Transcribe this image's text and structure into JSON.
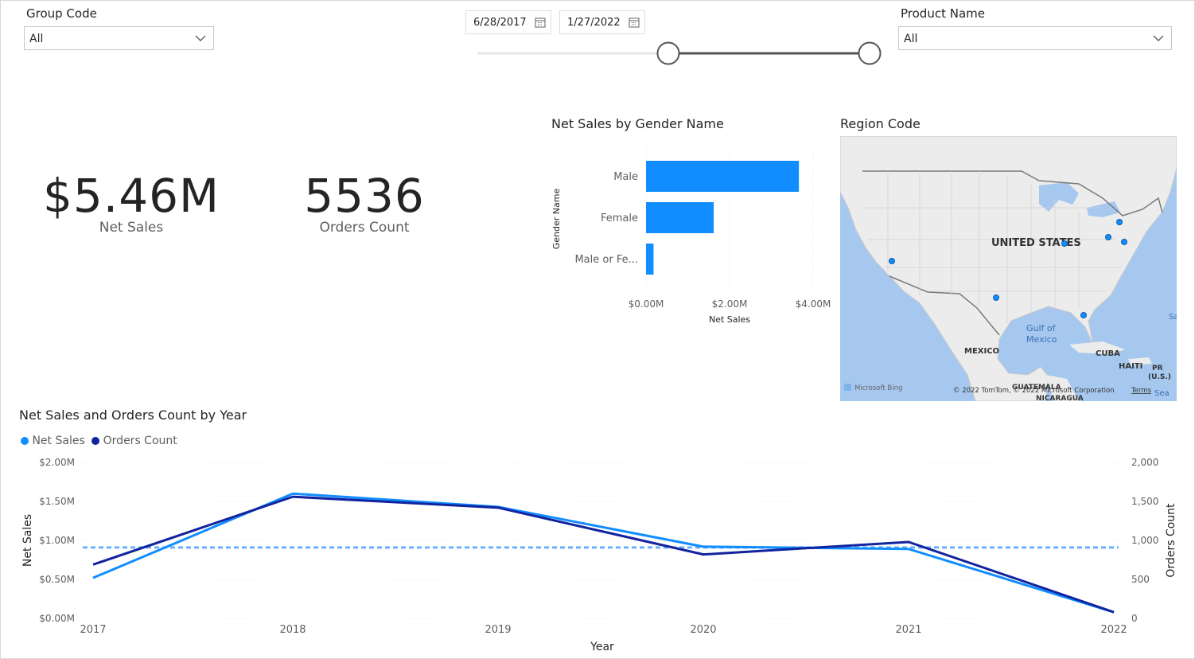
{
  "slicers": {
    "group_code": {
      "title": "Group Code",
      "value": "All"
    },
    "product_name": {
      "title": "Product Name",
      "value": "All"
    },
    "date_range": {
      "start": "6/28/2017",
      "end": "1/27/2022"
    }
  },
  "kpis": {
    "net_sales": {
      "value": "$5.46M",
      "label": "Net Sales"
    },
    "orders_count": {
      "value": "5536",
      "label": "Orders Count"
    }
  },
  "gender_chart": {
    "title": "Net Sales by Gender Name",
    "chart_data": {
      "type": "bar",
      "orientation": "horizontal",
      "categories": [
        "Male",
        "Female",
        "Male or Fe..."
      ],
      "values": [
        3.66,
        1.62,
        0.18
      ],
      "xlabel": "Net Sales",
      "ylabel": "Gender Name",
      "xticks": [
        "$0.00M",
        "$2.00M",
        "$4.00M"
      ],
      "xlim": [
        0,
        4
      ],
      "color": "#118dff"
    }
  },
  "map": {
    "title": "Region Code",
    "labels": {
      "country": "UNITED STATES",
      "gulf_line1": "Gulf of",
      "gulf_line2": "Mexico",
      "mexico": "MEXICO",
      "cuba": "CUBA",
      "haiti": "HAITI",
      "pr1": "PR",
      "pr2": "(U.S.)",
      "guatemala": "GUATEMALA",
      "nicaragua": "NICARAGUA",
      "sea": "Sea",
      "edge_sa": "Sa",
      "bing": "Microsoft Bing",
      "copyright": "© 2022 TomTom, © 2022 Microsoft Corporation",
      "terms": "Terms"
    },
    "colors": {
      "land": "#ececec",
      "water": "#a6c8ef",
      "dot": "#118dff"
    }
  },
  "year_chart": {
    "title": "Net Sales and Orders Count by Year",
    "legend": [
      "Net Sales",
      "Orders Count"
    ],
    "chart_data": {
      "type": "line",
      "x": [
        "2017",
        "2018",
        "2019",
        "2020",
        "2021",
        "2022"
      ],
      "series": [
        {
          "name": "Net Sales",
          "axis": "left",
          "color": "#118dff",
          "values": [
            0.52,
            1.6,
            1.43,
            0.92,
            0.89,
            0.08
          ]
        },
        {
          "name": "Orders Count",
          "axis": "right",
          "color": "#12239e",
          "values": [
            690,
            1560,
            1420,
            820,
            980,
            80
          ]
        }
      ],
      "reference_line": {
        "axis": "left",
        "value": 0.91,
        "color": "#6ab0ff"
      },
      "left_axis": {
        "label": "Net Sales",
        "ticks": [
          "$0.00M",
          "$0.50M",
          "$1.00M",
          "$1.50M",
          "$2.00M"
        ],
        "lim": [
          0,
          2
        ]
      },
      "right_axis": {
        "label": "Orders Count",
        "ticks": [
          "0",
          "500",
          "1,000",
          "1,500",
          "2,000"
        ],
        "lim": [
          0,
          2000
        ]
      },
      "xlabel": "Year"
    }
  }
}
